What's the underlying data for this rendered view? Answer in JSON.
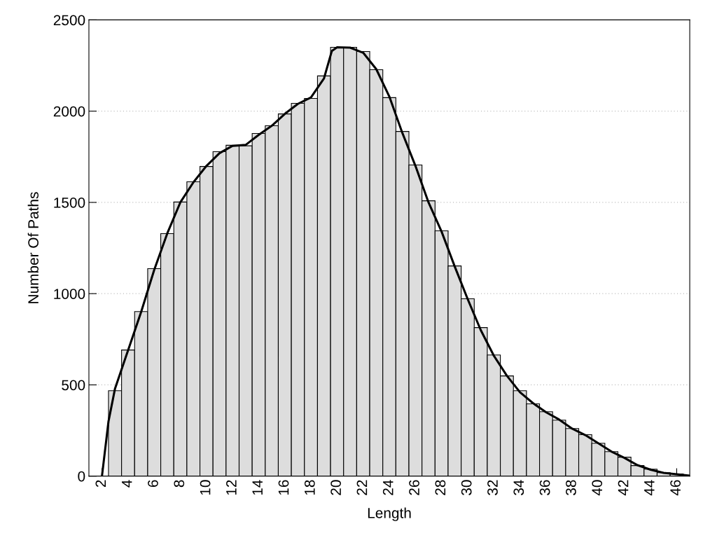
{
  "chart_data": {
    "type": "histogram",
    "xlabel": "Length",
    "ylabel": "Number Of Paths",
    "bins": [
      2.5,
      3.5,
      4.5,
      5.5,
      6.5,
      7.5,
      8.5,
      9.5,
      10.5,
      11.5,
      12.5,
      13.5,
      14.5,
      15.5,
      16.5,
      17.5,
      18.5,
      19.5,
      20.5,
      21.5,
      22.5,
      23.5,
      24.5,
      25.5,
      26.5,
      27.5,
      28.5,
      29.5,
      30.5,
      31.5,
      32.5,
      33.5,
      34.5,
      35.5,
      36.5,
      37.5,
      38.5,
      39.5,
      40.5,
      41.5,
      42.5,
      43.5,
      44.5,
      45.5,
      46.5
    ],
    "values": [
      468,
      691,
      902,
      1137,
      1329,
      1502,
      1613,
      1697,
      1778,
      1813,
      1810,
      1878,
      1920,
      1985,
      2043,
      2070,
      2193,
      2350,
      2350,
      2327,
      2227,
      2074,
      1889,
      1705,
      1509,
      1344,
      1152,
      972,
      814,
      664,
      549,
      468,
      396,
      353,
      307,
      261,
      227,
      180,
      134,
      104,
      58,
      38,
      19,
      12
    ],
    "color": "#dddddd",
    "series": [
      {
        "type": "line",
        "color": "#000000",
        "x": [
          2,
          2.5,
          3,
          4,
          5,
          6,
          7,
          8,
          9,
          10,
          11,
          12,
          13,
          14,
          15,
          16,
          17,
          18,
          19,
          19.6,
          20,
          21,
          22,
          23,
          24,
          25,
          26,
          27,
          28,
          29,
          30,
          31,
          32,
          33,
          34,
          35,
          36,
          37,
          38,
          39,
          40,
          41,
          42,
          43,
          44,
          45,
          46,
          47
        ],
        "values": [
          0,
          300,
          480,
          690,
          900,
          1130,
          1330,
          1500,
          1610,
          1700,
          1770,
          1810,
          1815,
          1870,
          1920,
          1985,
          2040,
          2075,
          2180,
          2330,
          2350,
          2348,
          2320,
          2230,
          2080,
          1880,
          1700,
          1500,
          1340,
          1150,
          970,
          800,
          660,
          550,
          460,
          400,
          350,
          310,
          260,
          225,
          180,
          135,
          100,
          60,
          35,
          18,
          10,
          3
        ]
      }
    ],
    "xlim": [
      1,
      47
    ],
    "xticks": [
      2,
      4,
      6,
      8,
      10,
      12,
      14,
      16,
      18,
      20,
      22,
      24,
      26,
      28,
      30,
      32,
      34,
      36,
      38,
      40,
      42,
      44,
      46
    ],
    "ylim": [
      0,
      2500
    ],
    "yticks": [
      0,
      500,
      1000,
      1500,
      2000,
      2500
    ],
    "grid": "y",
    "line_style": "solid",
    "marker": "none"
  }
}
